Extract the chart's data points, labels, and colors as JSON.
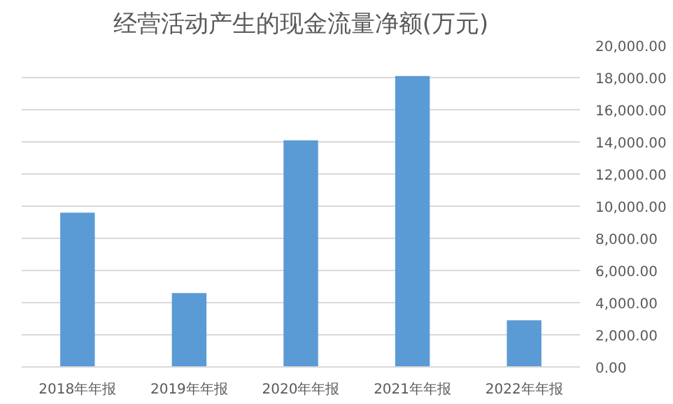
{
  "chart_data": {
    "type": "bar",
    "title": "经营活动产生的现金流量净额(万元)",
    "categories": [
      "2018年年报",
      "2019年年报",
      "2020年年报",
      "2021年年报",
      "2022年年报"
    ],
    "values": [
      9600,
      4600,
      14100,
      18100,
      2900
    ],
    "color": "#5b9bd5",
    "ylim": [
      0,
      20000
    ],
    "yticks": [
      {
        "value": 0,
        "label": "0.00"
      },
      {
        "value": 2000,
        "label": "2,000.00"
      },
      {
        "value": 4000,
        "label": "4,000.00"
      },
      {
        "value": 6000,
        "label": "6,000.00"
      },
      {
        "value": 8000,
        "label": "8,000.00"
      },
      {
        "value": 10000,
        "label": "10,000.00"
      },
      {
        "value": 12000,
        "label": "12,000.00"
      },
      {
        "value": 14000,
        "label": "14,000.00"
      },
      {
        "value": 16000,
        "label": "16,000.00"
      },
      {
        "value": 18000,
        "label": "18,000.00"
      },
      {
        "value": 20000,
        "label": "20,000.00"
      }
    ],
    "grid": "y"
  }
}
